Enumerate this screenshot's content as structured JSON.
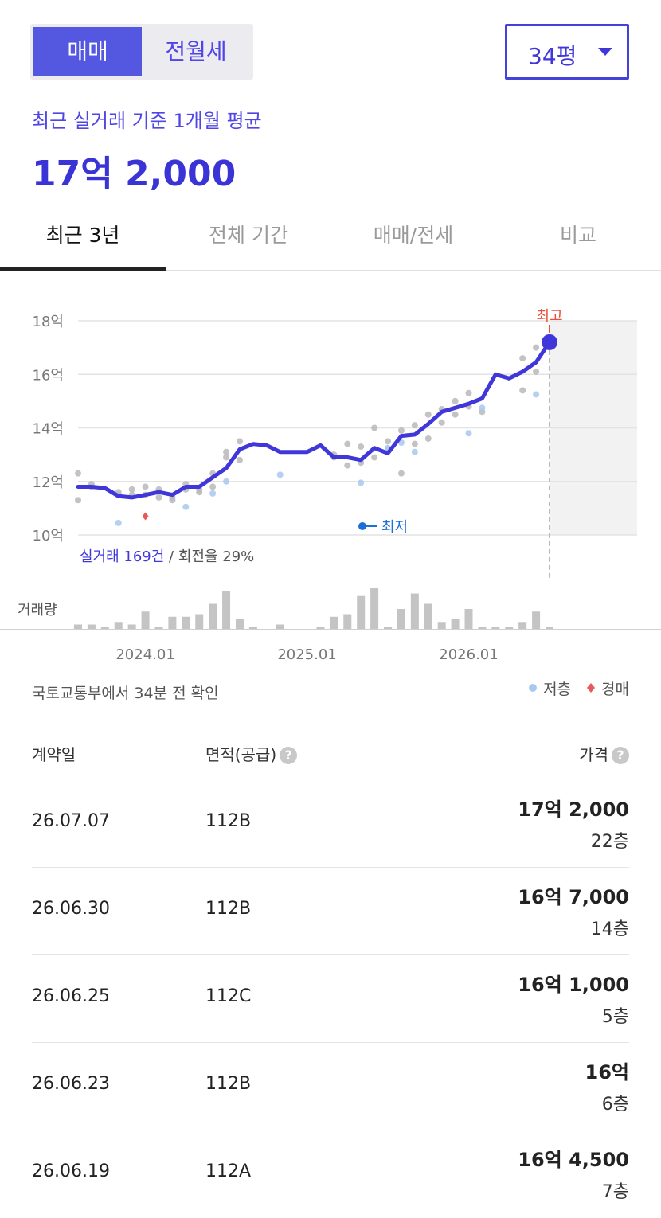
{
  "deal_tabs": [
    "매매",
    "전월세"
  ],
  "size_select": "34평",
  "summary": {
    "label": "최근 실거래 기준 1개월 평균",
    "value": "17억 2,000"
  },
  "period_tabs": [
    "최근 3년",
    "전체 기간",
    "매매/전세",
    "비교"
  ],
  "chart_data": {
    "type": "line",
    "categories": [
      null,
      null,
      null,
      null,
      null,
      "2024.01",
      null,
      null,
      null,
      null,
      null,
      null,
      null,
      null,
      null,
      null,
      null,
      "2025.01",
      null,
      null,
      null,
      null,
      null,
      null,
      null,
      null,
      null,
      null,
      null,
      "2026.01",
      null,
      null,
      null,
      null,
      null,
      null
    ],
    "ylim": [
      10,
      18
    ],
    "yticks": [
      {
        "value": 10,
        "label": "10억"
      },
      {
        "value": 12,
        "label": "12억"
      },
      {
        "value": 14,
        "label": "14억"
      },
      {
        "value": 16,
        "label": "16억"
      },
      {
        "value": 18,
        "label": "18억"
      }
    ],
    "grid": true,
    "line": {
      "color": "#3f37d9",
      "values": [
        11.8,
        11.8,
        11.75,
        11.45,
        11.4,
        11.5,
        11.6,
        11.5,
        11.8,
        11.8,
        12.15,
        12.5,
        13.2,
        13.4,
        13.35,
        13.1,
        13.1,
        13.1,
        13.35,
        12.9,
        12.9,
        12.8,
        13.25,
        13.05,
        13.7,
        13.75,
        14.15,
        14.6,
        14.75,
        14.9,
        15.1,
        16.0,
        15.85,
        16.1,
        16.45,
        17.2
      ]
    },
    "series": [
      {
        "color": "#b8b8b8",
        "values": [
          12.3,
          11.9,
          null,
          11.6,
          11.7,
          11.8,
          11.7,
          11.4,
          11.9,
          11.7,
          12.3,
          13.1,
          13.5,
          null,
          null,
          null,
          null,
          null,
          null,
          13.0,
          13.4,
          13.3,
          14.0,
          13.5,
          13.9,
          14.1,
          14.5,
          14.7,
          15.0,
          15.3,
          null,
          null,
          null,
          16.6,
          17.0,
          null
        ]
      },
      {
        "color": "#b8b8b8",
        "values": [
          11.3,
          11.8,
          null,
          11.5,
          11.5,
          11.5,
          11.4,
          11.3,
          11.7,
          11.6,
          11.8,
          12.9,
          12.8,
          null,
          null,
          null,
          null,
          null,
          null,
          12.9,
          12.6,
          12.7,
          12.9,
          13.2,
          12.3,
          13.4,
          13.6,
          14.2,
          14.5,
          14.8,
          14.6,
          null,
          null,
          15.4,
          16.1,
          null
        ]
      },
      {
        "name": "저층",
        "color": "#a9c8f0",
        "values": [
          null,
          null,
          null,
          10.45,
          null,
          null,
          null,
          null,
          11.05,
          null,
          11.55,
          12.0,
          null,
          null,
          null,
          12.25,
          null,
          null,
          null,
          null,
          null,
          11.95,
          null,
          13.25,
          13.45,
          13.1,
          null,
          null,
          null,
          13.8,
          14.75,
          null,
          null,
          null,
          15.25,
          null
        ]
      },
      {
        "name": "경매",
        "color": "#e8595a",
        "values": [
          null,
          null,
          null,
          null,
          null,
          10.7,
          null,
          null,
          null,
          null,
          null,
          null,
          null,
          null,
          null,
          null,
          null,
          null,
          null,
          null,
          null,
          null,
          null,
          null,
          null,
          null,
          null,
          null,
          null,
          null,
          null,
          null,
          null,
          null,
          null,
          null
        ]
      }
    ],
    "volume": {
      "label": "거래량",
      "color": "#c4c4c4",
      "values": [
        2,
        2,
        1,
        3,
        2,
        7,
        1,
        5,
        5,
        6,
        10,
        15,
        4,
        1,
        0,
        2,
        0,
        0,
        1,
        5,
        6,
        13,
        16,
        1,
        8,
        14,
        10,
        3,
        4,
        8,
        1,
        1,
        1,
        3,
        7,
        1
      ]
    },
    "max_label": "최고",
    "min_label": "최저",
    "stats": {
      "count": "실거래 169건",
      "turnover": " / 회전율 29%"
    }
  },
  "source": "국토교통부에서 34분 전 확인",
  "table": {
    "header": [
      "계약일",
      "면적(공급)",
      "가격"
    ],
    "rows": [
      [
        "26.07.07",
        "112B",
        "17억 2,000",
        "22층"
      ],
      [
        "26.06.30",
        "112B",
        "16억 7,000",
        "14층"
      ],
      [
        "26.06.25",
        "112C",
        "16억 1,000",
        "5층"
      ],
      [
        "26.06.23",
        "112B",
        "16억",
        "6층"
      ],
      [
        "26.06.19",
        "112A",
        "16억 4,500",
        "7층"
      ]
    ]
  }
}
